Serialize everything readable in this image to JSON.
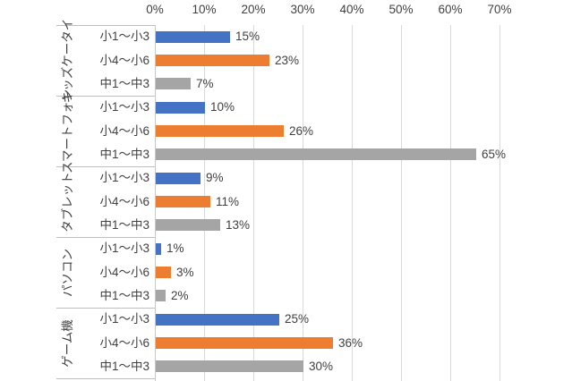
{
  "chart": {
    "background": "#FFFFFF",
    "text_color": "#404040",
    "gridline_color": "#D9D9D9",
    "separator_color": "#BFBFBF"
  },
  "chart_data": {
    "type": "bar",
    "orientation": "horizontal",
    "title": "",
    "xlabel": "",
    "ylabel": "",
    "legend": "none",
    "value_axis": {
      "position": "top",
      "min": 0,
      "max": 70,
      "tick_step": 10,
      "grid": true,
      "tick_labels": [
        "0%",
        "10%",
        "20%",
        "30%",
        "40%",
        "50%",
        "60%",
        "70%"
      ]
    },
    "categories": [
      "キッズケータイ",
      "スマートフォン",
      "タブレット",
      "パソコン",
      "ゲーム機"
    ],
    "subcategories": [
      "小1〜小3",
      "小4〜小6",
      "中1〜中3"
    ],
    "series": [
      {
        "name": "小1〜小3",
        "color": "#4472C4",
        "values": [
          15,
          10,
          9,
          1,
          25
        ],
        "labels": [
          "15%",
          "10%",
          "9%",
          "1%",
          "25%"
        ]
      },
      {
        "name": "小4〜小6",
        "color": "#ED7D31",
        "values": [
          23,
          26,
          11,
          3,
          36
        ],
        "labels": [
          "23%",
          "26%",
          "11%",
          "3%",
          "36%"
        ]
      },
      {
        "name": "中1〜中3",
        "color": "#A5A5A5",
        "values": [
          7,
          65,
          13,
          2,
          30
        ],
        "labels": [
          "7%",
          "65%",
          "13%",
          "2%",
          "30%"
        ]
      }
    ],
    "data_labels": {
      "visible": true,
      "format": "{value}%"
    }
  }
}
